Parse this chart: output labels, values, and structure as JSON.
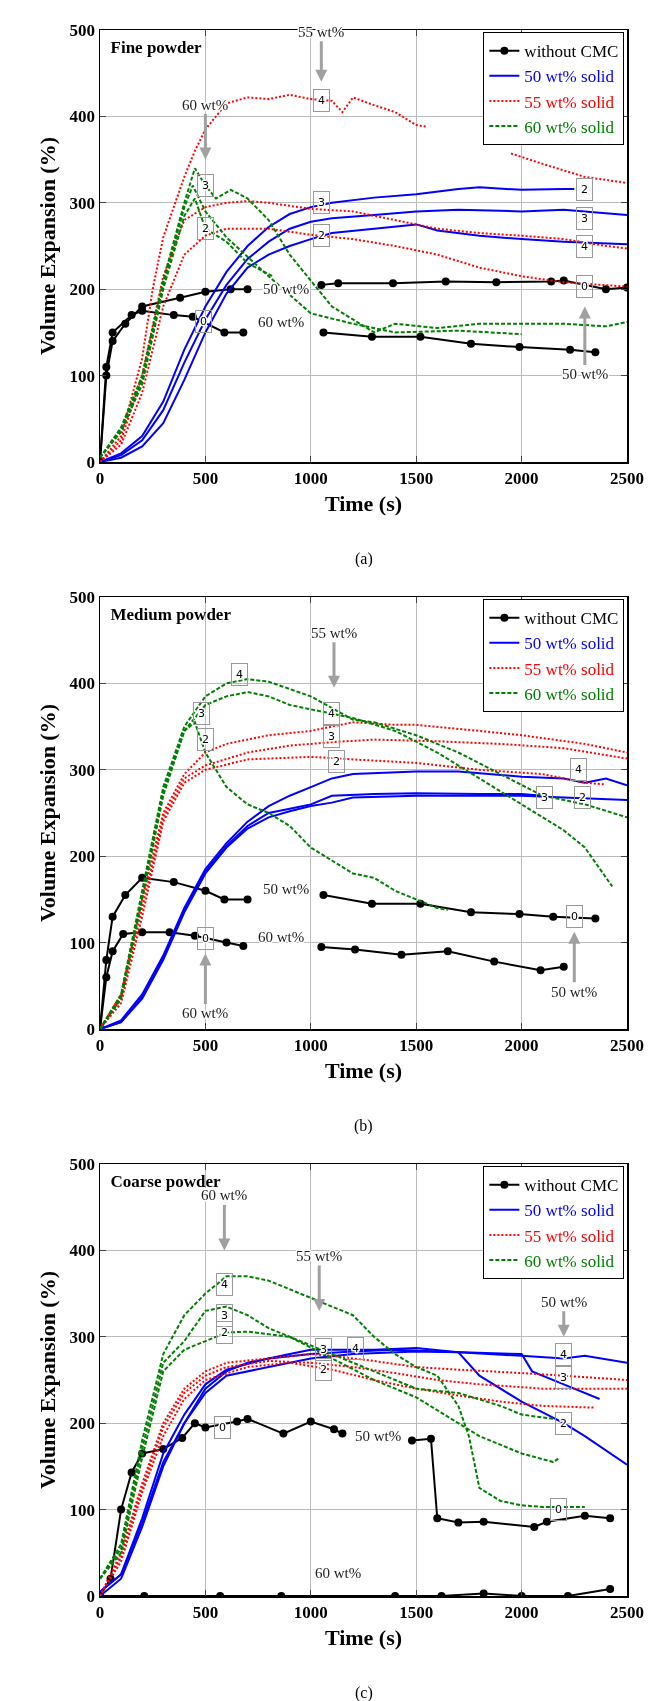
{
  "chart_data": [
    {
      "type": "line",
      "title": "Fine powder",
      "xlabel": "Time (s)",
      "ylabel": "Volume Expansion (%)",
      "xlim": [
        0,
        2500
      ],
      "ylim": [
        0,
        500
      ],
      "xticks": [
        0,
        500,
        1000,
        1500,
        2000,
        2500
      ],
      "yticks": [
        0,
        100,
        200,
        300,
        400,
        500
      ],
      "grid": true,
      "legend": "top right",
      "series": [
        {
          "name": "without CMC",
          "color": "#000000",
          "marker": "circle",
          "line_style": "solid",
          "x": [
            0,
            30,
            60,
            120,
            200,
            380,
            500,
            620,
            700,
            730,
            1050,
            1130,
            1390,
            1640,
            1880,
            2140,
            2200,
            2400,
            2500
          ],
          "values": [
            0,
            100,
            140,
            160,
            180,
            190,
            197,
            200,
            200,
            null,
            205,
            207,
            207,
            209,
            208,
            209,
            210,
            200,
            202
          ]
        },
        {
          "color": "#000000",
          "marker": "circle",
          "line_style": "solid",
          "x": [
            0,
            30,
            60,
            150,
            200,
            350,
            440,
            590,
            680,
            800,
            1060,
            1290,
            1520,
            1760,
            1990,
            2230,
            2350
          ],
          "values": [
            0,
            110,
            150,
            170,
            175,
            170,
            168,
            150,
            150,
            null,
            150,
            145,
            145,
            137,
            133,
            130,
            127
          ]
        },
        {
          "name": "50 wt% solid",
          "color": "#0000ff",
          "marker": "none",
          "line_style": "solid",
          "x": [
            0,
            100,
            200,
            300,
            400,
            500,
            600,
            700,
            800,
            900,
            1000,
            1100,
            1300,
            1500,
            1700,
            1800,
            2000,
            2200,
            2250
          ],
          "values": [
            0,
            10,
            30,
            70,
            130,
            180,
            220,
            250,
            272,
            287,
            295,
            300,
            306,
            310,
            316,
            318,
            315,
            316,
            316
          ]
        },
        {
          "color": "#0000ff",
          "marker": "none",
          "line_style": "solid",
          "x": [
            0,
            100,
            200,
            300,
            400,
            500,
            600,
            700,
            800,
            900,
            1000,
            1100,
            1300,
            1500,
            1700,
            2000,
            2200,
            2500
          ],
          "values": [
            0,
            8,
            25,
            60,
            115,
            165,
            205,
            235,
            255,
            270,
            278,
            282,
            286,
            290,
            292,
            290,
            292,
            286
          ]
        },
        {
          "color": "#0000ff",
          "marker": "none",
          "line_style": "solid",
          "x": [
            0,
            100,
            200,
            300,
            400,
            500,
            600,
            700,
            800,
            900,
            1000,
            1100,
            1300,
            1500,
            1600,
            1800,
            2000,
            2200,
            2500
          ],
          "values": [
            0,
            5,
            18,
            45,
            95,
            150,
            195,
            225,
            240,
            250,
            258,
            265,
            270,
            275,
            268,
            262,
            258,
            255,
            252
          ]
        },
        {
          "name": "55 wt% solid",
          "color": "#ff0000",
          "marker": "none",
          "line_style": "dotted",
          "x": [
            0,
            100,
            200,
            250,
            300,
            400,
            450,
            500,
            600,
            700,
            800,
            900,
            1000,
            1100,
            1150,
            1200,
            1300,
            1400,
            1500,
            1550,
            1750,
            1950,
            2100,
            2300,
            2500
          ],
          "values": [
            0,
            30,
            120,
            200,
            260,
            330,
            360,
            385,
            415,
            422,
            420,
            425,
            420,
            418,
            405,
            422,
            413,
            405,
            390,
            388,
            null,
            357,
            345,
            330,
            323
          ]
        },
        {
          "color": "#ff0000",
          "marker": "none",
          "line_style": "dotted",
          "x": [
            0,
            100,
            200,
            300,
            400,
            500,
            600,
            700,
            800,
            1000,
            1200,
            1400,
            1600,
            1800,
            2000,
            2200,
            2400,
            2500
          ],
          "values": [
            0,
            25,
            100,
            215,
            280,
            295,
            300,
            302,
            300,
            293,
            290,
            280,
            270,
            265,
            262,
            258,
            250,
            247
          ]
        },
        {
          "color": "#ff0000",
          "marker": "none",
          "line_style": "dotted",
          "x": [
            0,
            100,
            200,
            300,
            400,
            500,
            600,
            800,
            1000,
            1200,
            1400,
            1600,
            1800,
            2000,
            2200,
            2500
          ],
          "values": [
            0,
            20,
            80,
            180,
            240,
            262,
            270,
            270,
            263,
            258,
            250,
            240,
            225,
            215,
            208,
            203
          ]
        },
        {
          "name": "60 wt% solid",
          "color": "#008000",
          "marker": "none",
          "line_style": "dashed",
          "x": [
            0,
            100,
            200,
            300,
            400,
            450,
            500,
            550,
            620,
            700,
            800,
            900,
            1000,
            1100,
            1200,
            1300,
            1400,
            1600,
            1800,
            2000,
            2200,
            2400,
            2500
          ],
          "values": [
            5,
            40,
            100,
            210,
            300,
            340,
            320,
            305,
            315,
            305,
            280,
            240,
            210,
            180,
            165,
            150,
            160,
            155,
            160,
            160,
            160,
            157,
            162
          ]
        },
        {
          "color": "#008000",
          "marker": "none",
          "line_style": "dashed",
          "x": [
            0,
            100,
            200,
            300,
            400,
            450,
            500,
            600,
            700,
            820
          ],
          "values": [
            5,
            35,
            90,
            200,
            285,
            305,
            270,
            255,
            230,
            215
          ]
        },
        {
          "color": "#008000",
          "marker": "none",
          "line_style": "dashed",
          "x": [
            0,
            100,
            200,
            300,
            400,
            440,
            500,
            600,
            800,
            1000,
            1200,
            1400,
            1700,
            2000
          ],
          "values": [
            5,
            38,
            95,
            205,
            295,
            320,
            290,
            260,
            215,
            172,
            160,
            150,
            152,
            148
          ]
        }
      ],
      "annotations": [
        {
          "text": "3",
          "x": 500,
          "y": 320
        },
        {
          "text": "2",
          "x": 500,
          "y": 270
        },
        {
          "text": "4",
          "x": 1050,
          "y": 418
        },
        {
          "text": "3",
          "x": 1050,
          "y": 300
        },
        {
          "text": "2",
          "x": 1050,
          "y": 262
        },
        {
          "text": "0",
          "x": 490,
          "y": 163
        },
        {
          "text": "2",
          "x": 2300,
          "y": 315
        },
        {
          "text": "3",
          "x": 2300,
          "y": 282
        },
        {
          "text": "4",
          "x": 2300,
          "y": 250
        },
        {
          "text": "0",
          "x": 2300,
          "y": 203
        },
        "60 wt%",
        "55 wt%",
        "50 wt%",
        "50 wt%",
        "60 wt%",
        "(a)"
      ]
    },
    {
      "type": "line",
      "title": "Medium powder",
      "xlabel": "Time (s)",
      "ylabel": "Volume Expansion (%)",
      "xlim": [
        0,
        2500
      ],
      "ylim": [
        0,
        500
      ],
      "xticks": [
        0,
        500,
        1000,
        1500,
        2000,
        2500
      ],
      "yticks": [
        0,
        100,
        200,
        300,
        400,
        500
      ],
      "grid": true,
      "legend": "top right",
      "series": [
        {
          "name": "without CMC",
          "color": "#000000",
          "marker": "circle",
          "line_style": "solid",
          "x": [
            0,
            30,
            60,
            120,
            200,
            350,
            500,
            590,
            700,
            800,
            1060,
            1290,
            1520,
            1760,
            1990,
            2150,
            2350
          ],
          "values": [
            0,
            80,
            130,
            155,
            175,
            170,
            160,
            150,
            150,
            null,
            155,
            145,
            145,
            135,
            133,
            130,
            128
          ]
        },
        {
          "color": "#000000",
          "marker": "circle",
          "line_style": "solid",
          "x": [
            0,
            30,
            60,
            110,
            200,
            330,
            450,
            600,
            680,
            800,
            1050,
            1210,
            1430,
            1650,
            1870,
            2090,
            2200
          ],
          "values": [
            0,
            60,
            90,
            110,
            112,
            112,
            108,
            100,
            96,
            null,
            95,
            92,
            86,
            90,
            78,
            68,
            72
          ]
        },
        {
          "name": "50 wt% solid",
          "color": "#0000ff",
          "marker": "none",
          "line_style": "solid",
          "x": [
            0,
            100,
            200,
            300,
            400,
            500,
            600,
            700,
            800,
            900,
            1000,
            1100,
            1200,
            1500,
            1700,
            2000,
            2200,
            2300,
            2400,
            2500
          ],
          "values": [
            0,
            10,
            40,
            85,
            140,
            185,
            215,
            240,
            258,
            270,
            280,
            290,
            295,
            298,
            298,
            292,
            290,
            285,
            290,
            282
          ]
        },
        {
          "color": "#0000ff",
          "marker": "none",
          "line_style": "solid",
          "x": [
            0,
            100,
            200,
            300,
            400,
            500,
            600,
            700,
            800,
            900,
            1000,
            1100,
            1300,
            1500,
            1800,
            2000,
            2100
          ],
          "values": [
            0,
            8,
            37,
            82,
            138,
            182,
            212,
            235,
            250,
            255,
            260,
            270,
            272,
            273,
            272,
            272,
            270
          ]
        },
        {
          "color": "#0000ff",
          "marker": "none",
          "line_style": "solid",
          "x": [
            0,
            100,
            200,
            300,
            400,
            500,
            600,
            700,
            800,
            900,
            1000,
            1100,
            1200,
            1500,
            1800,
            2000,
            2200,
            2500
          ],
          "values": [
            0,
            8,
            35,
            80,
            135,
            180,
            210,
            232,
            245,
            252,
            258,
            262,
            268,
            270,
            270,
            270,
            268,
            265
          ]
        },
        {
          "name": "55 wt% solid",
          "color": "#ff0000",
          "marker": "none",
          "line_style": "dotted",
          "x": [
            0,
            100,
            200,
            300,
            400,
            500,
            600,
            800,
            1000,
            1200,
            1400,
            1500,
            1800,
            2000,
            2300,
            2500
          ],
          "values": [
            0,
            40,
            150,
            250,
            295,
            320,
            330,
            340,
            345,
            355,
            352,
            352,
            345,
            340,
            330,
            320
          ]
        },
        {
          "color": "#ff0000",
          "marker": "none",
          "line_style": "dotted",
          "x": [
            0,
            100,
            200,
            300,
            400,
            500,
            700,
            900,
            1100,
            1300,
            1600,
            1900,
            2200,
            2500
          ],
          "values": [
            0,
            35,
            140,
            245,
            290,
            305,
            320,
            328,
            332,
            335,
            333,
            330,
            325,
            313
          ]
        },
        {
          "color": "#ff0000",
          "marker": "none",
          "line_style": "dotted",
          "x": [
            0,
            100,
            200,
            300,
            400,
            500,
            700,
            1000,
            1200,
            1500,
            1800,
            2100,
            2300,
            2400
          ],
          "values": [
            0,
            30,
            130,
            240,
            285,
            300,
            312,
            315,
            312,
            308,
            300,
            295,
            285,
            283
          ]
        },
        {
          "name": "60 wt% solid",
          "color": "#008000",
          "marker": "none",
          "line_style": "dashed",
          "x": [
            0,
            100,
            200,
            300,
            400,
            500,
            600,
            700,
            800,
            1000,
            1200,
            1300,
            1500,
            1700,
            1900,
            2100,
            2300,
            2500
          ],
          "values": [
            0,
            40,
            160,
            280,
            350,
            385,
            400,
            405,
            402,
            385,
            358,
            355,
            340,
            320,
            295,
            270,
            260,
            245
          ]
        },
        {
          "color": "#008000",
          "marker": "none",
          "line_style": "dashed",
          "x": [
            0,
            100,
            200,
            300,
            400,
            500,
            600,
            700,
            800,
            900,
            1000,
            1100,
            1200,
            1400,
            1600,
            1800,
            2000,
            2200,
            2300,
            2430
          ],
          "values": [
            0,
            38,
            155,
            275,
            345,
            375,
            385,
            390,
            385,
            375,
            370,
            365,
            360,
            345,
            320,
            290,
            260,
            230,
            210,
            165
          ]
        },
        {
          "color": "#008000",
          "marker": "none",
          "line_style": "dashed",
          "x": [
            0,
            100,
            200,
            300,
            400,
            450,
            500,
            600,
            700,
            800,
            900,
            1000,
            1100,
            1200,
            1300,
            1400,
            1500,
            1600,
            1650
          ],
          "values": [
            0,
            35,
            150,
            270,
            345,
            355,
            320,
            280,
            260,
            250,
            235,
            210,
            195,
            180,
            175,
            160,
            150,
            140,
            138
          ]
        }
      ],
      "annotations": [
        {
          "text": "3",
          "x": 480,
          "y": 365
        },
        {
          "text": "2",
          "x": 500,
          "y": 335
        },
        {
          "text": "4",
          "x": 660,
          "y": 410
        },
        {
          "text": "4",
          "x": 1100,
          "y": 365
        },
        {
          "text": "3",
          "x": 1100,
          "y": 338
        },
        {
          "text": "2",
          "x": 1120,
          "y": 310
        },
        {
          "text": "4",
          "x": 2270,
          "y": 300
        },
        {
          "text": "3",
          "x": 2110,
          "y": 268
        },
        {
          "text": "2",
          "x": 2290,
          "y": 268
        },
        {
          "text": "0",
          "x": 500,
          "y": 105
        },
        {
          "text": "0",
          "x": 2250,
          "y": 130
        },
        "55 wt%",
        "60 wt%",
        "50 wt%",
        "50 wt%",
        "60 wt%",
        "(b)"
      ]
    },
    {
      "type": "line",
      "title": "Coarse powder",
      "xlabel": "Time (s)",
      "ylabel": "Volume Expansion (%)",
      "xlim": [
        0,
        2500
      ],
      "ylim": [
        0,
        500
      ],
      "xticks": [
        0,
        500,
        1000,
        1500,
        2000,
        2500
      ],
      "yticks": [
        0,
        100,
        200,
        300,
        400,
        500
      ],
      "grid": true,
      "legend": "top right",
      "series": [
        {
          "name": "without CMC",
          "color": "#000000",
          "marker": "circle",
          "line_style": "solid",
          "x": [
            0,
            50,
            100,
            150,
            200,
            300,
            390,
            450,
            500,
            650,
            700,
            870,
            1000,
            1110,
            1150,
            1300,
            1480,
            1570,
            1600,
            1700,
            1820,
            2060,
            2120,
            2300,
            2420
          ],
          "values": [
            0,
            20,
            100,
            143,
            165,
            170,
            183,
            200,
            195,
            202,
            205,
            188,
            202,
            193,
            188,
            null,
            180,
            182,
            90,
            85,
            86,
            80,
            86,
            93,
            90
          ]
        },
        {
          "color": "#000000",
          "marker": "circle",
          "line_style": "solid",
          "x": [
            0,
            210,
            570,
            860,
            1400,
            1620,
            1820,
            2000,
            2220,
            2420
          ],
          "values": [
            0,
            0,
            0,
            0,
            0,
            0,
            3,
            0,
            0,
            8
          ]
        },
        {
          "name": "50 wt% solid",
          "color": "#0000ff",
          "marker": "none",
          "line_style": "solid",
          "x": [
            0,
            100,
            200,
            300,
            400,
            500,
            600,
            700,
            800,
            900,
            1000,
            1100,
            1300,
            1500,
            1700,
            2000,
            2200,
            2300,
            2500
          ],
          "values": [
            0,
            20,
            80,
            150,
            200,
            240,
            260,
            270,
            275,
            280,
            285,
            285,
            285,
            287,
            282,
            278,
            275,
            278,
            270
          ]
        },
        {
          "color": "#0000ff",
          "marker": "none",
          "line_style": "solid",
          "x": [
            0,
            100,
            200,
            300,
            400,
            500,
            600,
            800,
            1000,
            1200,
            1400,
            1600,
            2000,
            2050,
            2200,
            2370
          ],
          "values": [
            5,
            25,
            90,
            165,
            210,
            245,
            262,
            275,
            280,
            283,
            285,
            283,
            280,
            260,
            245,
            228
          ]
        },
        {
          "color": "#0000ff",
          "marker": "none",
          "line_style": "solid",
          "x": [
            0,
            100,
            200,
            300,
            400,
            500,
            600,
            800,
            1000,
            1200,
            1500,
            1700,
            1800,
            2000,
            2200,
            2300,
            2500
          ],
          "values": [
            5,
            25,
            85,
            155,
            200,
            235,
            255,
            265,
            275,
            280,
            283,
            282,
            255,
            225,
            200,
            185,
            152
          ]
        },
        {
          "name": "55 wt% solid",
          "color": "#ff0000",
          "marker": "none",
          "line_style": "dotted",
          "x": [
            0,
            100,
            200,
            300,
            400,
            500,
            600,
            800,
            1000,
            1100,
            1300,
            1500,
            1700,
            2000,
            2200,
            2500
          ],
          "values": [
            0,
            50,
            130,
            200,
            240,
            260,
            270,
            275,
            280,
            278,
            272,
            265,
            262,
            258,
            255,
            250
          ]
        },
        {
          "color": "#ff0000",
          "marker": "none",
          "line_style": "dotted",
          "x": [
            0,
            100,
            200,
            300,
            400,
            500,
            600,
            800,
            1000,
            1200,
            1400,
            1600,
            1800,
            2100,
            2500
          ],
          "values": [
            0,
            45,
            125,
            195,
            235,
            255,
            265,
            272,
            270,
            265,
            258,
            250,
            245,
            240,
            240
          ]
        },
        {
          "color": "#ff0000",
          "marker": "none",
          "line_style": "dotted",
          "x": [
            0,
            100,
            200,
            300,
            400,
            500,
            700,
            900,
            1100,
            1300,
            1500,
            1700,
            1900,
            2100,
            2350
          ],
          "values": [
            0,
            40,
            120,
            185,
            228,
            250,
            265,
            270,
            262,
            250,
            240,
            232,
            225,
            220,
            218
          ]
        },
        {
          "name": "60 wt% solid",
          "color": "#008000",
          "marker": "none",
          "line_style": "dashed",
          "x": [
            0,
            100,
            200,
            300,
            400,
            500,
            600,
            700,
            800,
            900,
            1000,
            1100,
            1200,
            1300,
            1400,
            1500,
            1600,
            1700,
            1750,
            1800,
            1900,
            2000,
            2100,
            2200,
            2300
          ],
          "values": [
            20,
            60,
            180,
            280,
            325,
            350,
            370,
            370,
            365,
            355,
            345,
            335,
            325,
            300,
            280,
            265,
            255,
            220,
            185,
            125,
            110,
            105,
            103,
            103,
            103
          ]
        },
        {
          "color": "#008000",
          "marker": "none",
          "line_style": "dashed",
          "x": [
            0,
            100,
            200,
            300,
            400,
            500,
            600,
            700,
            800,
            900,
            1000,
            1100,
            1300,
            1500,
            1700,
            1900,
            2000,
            2150
          ],
          "values": [
            20,
            55,
            170,
            270,
            295,
            330,
            335,
            325,
            310,
            300,
            290,
            280,
            260,
            240,
            235,
            220,
            210,
            205
          ]
        },
        {
          "color": "#008000",
          "marker": "none",
          "line_style": "dashed",
          "x": [
            0,
            100,
            200,
            300,
            400,
            500,
            600,
            700,
            900,
            1100,
            1300,
            1500,
            1700,
            1800,
            2000,
            2150,
            2180
          ],
          "values": [
            20,
            50,
            160,
            260,
            285,
            295,
            305,
            306,
            300,
            275,
            250,
            230,
            200,
            185,
            165,
            155,
            160
          ]
        }
      ],
      "annotations": [
        {
          "text": "4",
          "x": 590,
          "y": 360
        },
        {
          "text": "3",
          "x": 590,
          "y": 325
        },
        {
          "text": "2",
          "x": 590,
          "y": 305
        },
        {
          "text": "3",
          "x": 1060,
          "y": 285
        },
        {
          "text": "4",
          "x": 1210,
          "y": 287
        },
        {
          "text": "2",
          "x": 1060,
          "y": 262
        },
        {
          "text": "0",
          "x": 580,
          "y": 195
        },
        {
          "text": "4",
          "x": 2200,
          "y": 280
        },
        {
          "text": "3",
          "x": 2200,
          "y": 253
        },
        {
          "text": "2",
          "x": 2200,
          "y": 200
        },
        {
          "text": "0",
          "x": 2173,
          "y": 100
        },
        "60 wt%",
        "55 wt%",
        "50 wt%",
        "50 wt%",
        "60 wt%",
        "(c)"
      ]
    }
  ]
}
